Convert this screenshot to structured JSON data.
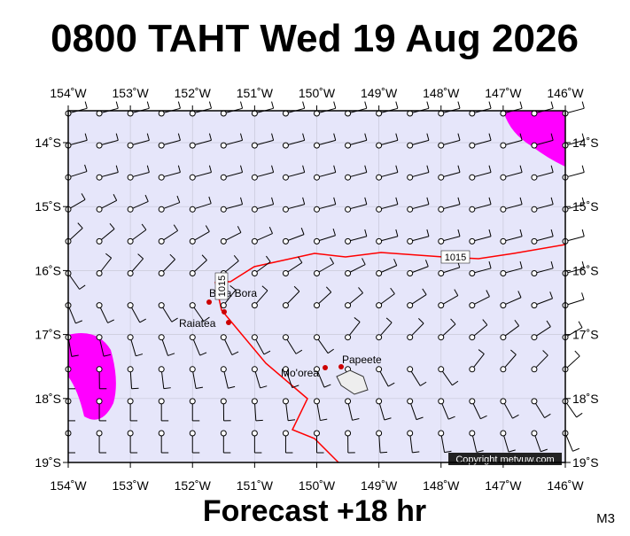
{
  "header": {
    "title": "0800 TAHT Wed 19 Aug 2026"
  },
  "map": {
    "lon_ticks": [
      {
        "value": 154,
        "label": "154˚W"
      },
      {
        "value": 153,
        "label": "153˚W"
      },
      {
        "value": 152,
        "label": "152˚W"
      },
      {
        "value": 151,
        "label": "151˚W"
      },
      {
        "value": 150,
        "label": "150˚W"
      },
      {
        "value": 149,
        "label": "149˚W"
      },
      {
        "value": 148,
        "label": "148˚W"
      },
      {
        "value": 147,
        "label": "147˚W"
      },
      {
        "value": 146,
        "label": "146˚W"
      }
    ],
    "lat_ticks": [
      {
        "value": 14,
        "label": "14˚S"
      },
      {
        "value": 15,
        "label": "15˚S"
      },
      {
        "value": 16,
        "label": "16˚S"
      },
      {
        "value": 17,
        "label": "17˚S"
      },
      {
        "value": 18,
        "label": "18˚S"
      },
      {
        "value": 19,
        "label": "19˚S"
      }
    ],
    "isobar": 1015,
    "places": [
      "Bora Bora",
      "Raiatea",
      "Mo'orea",
      "Papeete"
    ],
    "copyright": "Copyright metvuw.com"
  },
  "footer": {
    "subtitle": "Forecast +18 hr",
    "code": "M3"
  }
}
